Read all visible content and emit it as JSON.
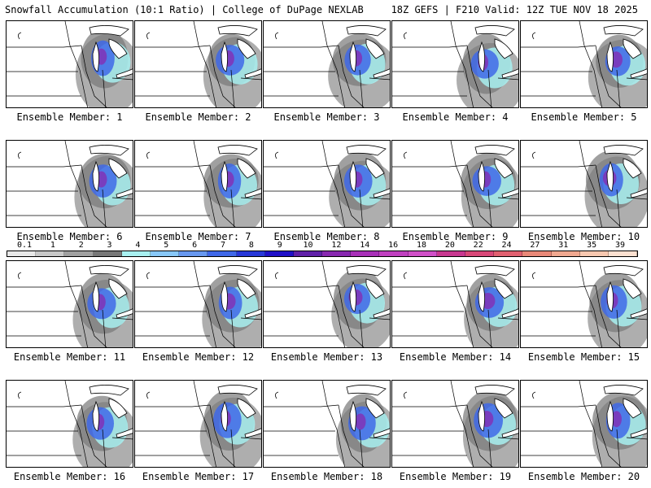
{
  "header": {
    "title_left": "Snowfall Accumulation (10:1 Ratio) | College of DuPage NEXLAB",
    "title_right": "18Z GEFS | F210 Valid: 12Z TUE NOV 18 2025"
  },
  "panels": [
    {
      "label": "Ensemble Member: 1"
    },
    {
      "label": "Ensemble Member: 2"
    },
    {
      "label": "Ensemble Member: 3"
    },
    {
      "label": "Ensemble Member: 4"
    },
    {
      "label": "Ensemble Member: 5"
    },
    {
      "label": "Ensemble Member: 6"
    },
    {
      "label": "Ensemble Member: 7"
    },
    {
      "label": "Ensemble Member: 8"
    },
    {
      "label": "Ensemble Member: 9"
    },
    {
      "label": "Ensemble Member: 10"
    },
    {
      "label": "Ensemble Member: 11"
    },
    {
      "label": "Ensemble Member: 12"
    },
    {
      "label": "Ensemble Member: 13"
    },
    {
      "label": "Ensemble Member: 14"
    },
    {
      "label": "Ensemble Member: 15"
    },
    {
      "label": "Ensemble Member: 16"
    },
    {
      "label": "Ensemble Member: 17"
    },
    {
      "label": "Ensemble Member: 18"
    },
    {
      "label": "Ensemble Member: 19"
    },
    {
      "label": "Ensemble Member: 20"
    }
  ],
  "colorbar": {
    "ticks": [
      "0.1",
      "1",
      "2",
      "3",
      "4",
      "5",
      "6",
      "7",
      "8",
      "9",
      "10",
      "12",
      "14",
      "16",
      "18",
      "20",
      "22",
      "24",
      "27",
      "31",
      "35",
      "39"
    ],
    "colors": [
      "#e8e8e8",
      "#c8c8c8",
      "#a0a0a0",
      "#787878",
      "#a8f0f0",
      "#88c8f8",
      "#6898f0",
      "#4068e8",
      "#2838d8",
      "#2010c8",
      "#6020a8",
      "#8828b0",
      "#a830b8",
      "#c040c0",
      "#d050c8",
      "#c83890",
      "#d84878",
      "#e06070",
      "#e88878",
      "#f0a890",
      "#f8c8b0",
      "#fce0d0"
    ]
  }
}
